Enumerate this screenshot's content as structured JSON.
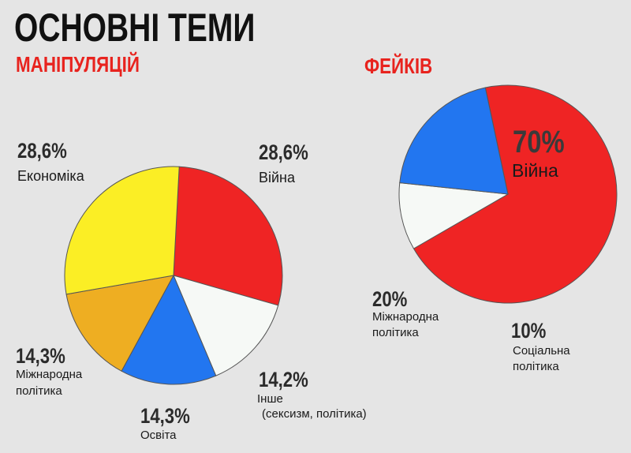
{
  "header": {
    "title": "ОСНОВНІ ТЕМИ"
  },
  "colors": {
    "red": "#ef2424",
    "yellow": "#fbee25",
    "orange": "#eeae22",
    "blue": "#2276f0",
    "white": "#f6f9f6",
    "accent": "#e8231e"
  },
  "chart_data": [
    {
      "type": "pie",
      "title": "МАНІПУЛЯЦІЙ",
      "slices": [
        {
          "pct_label": "28,6%",
          "value": 28.6,
          "label_lines": [
            "Війна"
          ],
          "color": "#ef2424"
        },
        {
          "pct_label": "14,2%",
          "value": 14.2,
          "label_lines": [
            "Інше",
            "(сексизм, політика)"
          ],
          "color": "#f6f9f6"
        },
        {
          "pct_label": "14,3%",
          "value": 14.3,
          "label_lines": [
            "Освіта"
          ],
          "color": "#2276f0"
        },
        {
          "pct_label": "14,3%",
          "value": 14.3,
          "label_lines": [
            "Міжнародна",
            "політика"
          ],
          "color": "#eeae22"
        },
        {
          "pct_label": "28,6%",
          "value": 28.6,
          "label_lines": [
            "Економіка"
          ],
          "color": "#fbee25"
        }
      ]
    },
    {
      "type": "pie",
      "title": "ФЕЙКІВ",
      "slices": [
        {
          "pct_label": "70%",
          "value": 70,
          "label_lines": [
            "Війна"
          ],
          "color": "#ef2424"
        },
        {
          "pct_label": "10%",
          "value": 10,
          "label_lines": [
            "Соціальна",
            "політика"
          ],
          "color": "#f6f9f6"
        },
        {
          "pct_label": "20%",
          "value": 20,
          "label_lines": [
            "Міжнародна",
            "політика"
          ],
          "color": "#2276f0"
        }
      ]
    }
  ]
}
